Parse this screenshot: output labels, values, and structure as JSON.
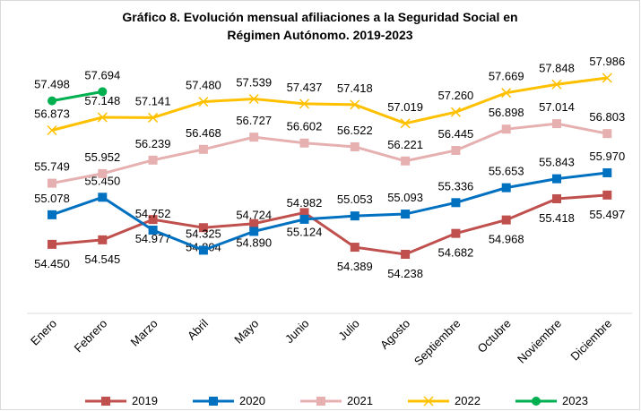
{
  "chart_data": {
    "type": "line",
    "title": [
      "Gráfico 8. Evolución mensual  afiliaciones a la Seguridad Social en",
      "Régimen Autónomo. 2019-2023"
    ],
    "categories": [
      "Enero",
      "Febrero",
      "Marzo",
      "Abril",
      "Mayo",
      "Junio",
      "Julio",
      "Agosto",
      "Septiembre",
      "Octubre",
      "Noviembre",
      "Diciembre"
    ],
    "series": [
      {
        "name": "2019",
        "color": "#c0504d",
        "marker": "square",
        "values": [
          54.45,
          54.545,
          54.977,
          54.804,
          54.89,
          55.124,
          54.389,
          54.238,
          54.682,
          54.968,
          55.418,
          55.497
        ],
        "value_labels": [
          "54.450",
          "54.545",
          "54.977",
          "54.804",
          "54.890",
          "55.124",
          "54.389",
          "54.238",
          "54.682",
          "54.968",
          "55.418",
          "55.497"
        ]
      },
      {
        "name": "2020",
        "color": "#0070c0",
        "marker": "square",
        "values": [
          55.078,
          55.45,
          54.752,
          54.325,
          54.724,
          54.982,
          55.053,
          55.093,
          55.336,
          55.653,
          55.843,
          55.97
        ],
        "value_labels": [
          "55.078",
          "55.450",
          "54.752",
          "54.325",
          "54.724",
          "54.982",
          "55.053",
          "55.093",
          "55.336",
          "55.653",
          "55.843",
          "55.970"
        ]
      },
      {
        "name": "2021",
        "color": "#e6b0b0",
        "marker": "square",
        "values": [
          55.749,
          55.952,
          56.239,
          56.468,
          56.727,
          56.602,
          56.522,
          56.221,
          56.445,
          56.898,
          57.014,
          56.803
        ],
        "value_labels": [
          "55.749",
          "55.952",
          "56.239",
          "56.468",
          "56.727",
          "56.602",
          "56.522",
          "56.221",
          "56.445",
          "56.898",
          "57.014",
          "56.803"
        ]
      },
      {
        "name": "2022",
        "color": "#ffc000",
        "marker": "x",
        "values": [
          56.873,
          57.148,
          57.141,
          57.48,
          57.539,
          57.437,
          57.418,
          57.019,
          57.26,
          57.669,
          57.848,
          57.986
        ],
        "value_labels": [
          "56.873",
          "57.148",
          "57.141",
          "57.480",
          "57.539",
          "57.437",
          "57.418",
          "57.019",
          "57.260",
          "57.669",
          "57.848",
          "57.986"
        ]
      },
      {
        "name": "2023",
        "color": "#00b050",
        "marker": "circle",
        "values": [
          57.498,
          57.694,
          null,
          null,
          null,
          null,
          null,
          null,
          null,
          null,
          null,
          null
        ],
        "value_labels": [
          "57.498",
          "57.694",
          null,
          null,
          null,
          null,
          null,
          null,
          null,
          null,
          null,
          null
        ]
      }
    ]
  }
}
